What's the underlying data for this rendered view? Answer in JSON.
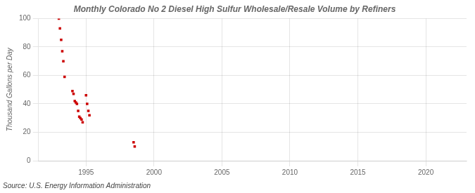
{
  "chart_data": {
    "type": "scatter",
    "title": "Monthly Colorado No 2 Diesel High Sulfur Wholesale/Resale Volume by Refiners",
    "y_label": "Thousand Gallons per Day",
    "annotation": "Source: U.S. Energy Information Administration",
    "x": [
      1993.0,
      1993.08,
      1993.17,
      1993.25,
      1993.33,
      1993.42,
      1994.0,
      1994.08,
      1994.17,
      1994.25,
      1994.33,
      1994.42,
      1994.5,
      1994.58,
      1994.67,
      1994.75,
      1995.0,
      1995.08,
      1995.17,
      1995.25,
      1998.5,
      1998.58
    ],
    "values": [
      100,
      93,
      85,
      77,
      70,
      59,
      49,
      47,
      42,
      41,
      40,
      35,
      31,
      30,
      29,
      27,
      46,
      40,
      35,
      32,
      13,
      10
    ],
    "color": "#cc0000",
    "marker": "square",
    "xlim": [
      1991.5,
      2023
    ],
    "ylim": [
      0,
      100
    ],
    "xticks": [
      1995,
      2000,
      2005,
      2010,
      2015,
      2020
    ],
    "yticks": [
      0,
      20,
      40,
      60,
      80,
      100
    ],
    "grid": true
  }
}
